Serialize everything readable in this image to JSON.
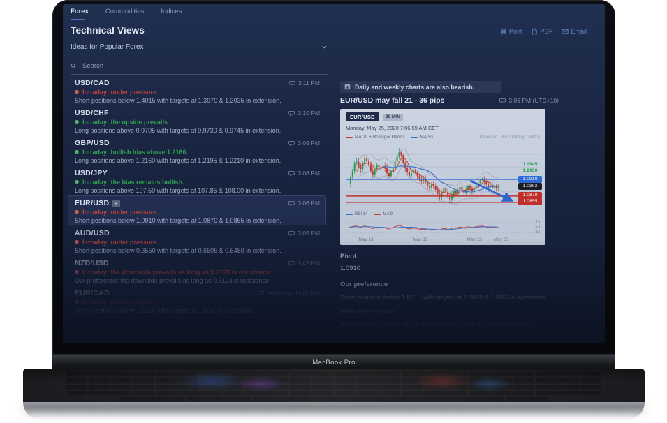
{
  "device": {
    "label": "MacBook Pro"
  },
  "colors": {
    "bullish": "#2f9e4e",
    "bearish": "#c04038",
    "accent_link": "#5f82c4",
    "pivot_blue": "#2e6bd6",
    "support_red": "#bf2e28"
  },
  "app": {
    "tabs": [
      {
        "label": "Forex",
        "active": true
      },
      {
        "label": "Commodities",
        "active": false
      },
      {
        "label": "Indices",
        "active": false
      }
    ],
    "title": "Technical Views",
    "actions": [
      {
        "label": "Print"
      },
      {
        "label": "PDF"
      },
      {
        "label": "Email"
      }
    ],
    "filter": {
      "value": "Ideas for Popular Forex"
    },
    "search": {
      "placeholder": "Search"
    }
  },
  "ideas": [
    {
      "pair": "USD/CAD",
      "sentiment": "bearish",
      "status": "Intraday: under pressure.",
      "body": "Short positions below 1.4015 with targets at 1.3970 & 1.3935 in extension.",
      "time": "3:11 PM"
    },
    {
      "pair": "USD/CHF",
      "sentiment": "bullish",
      "status": "Intraday: the upside prevails.",
      "body": "Long positions above 0.9705 with targets at 0.9730 & 0.9745 in extension.",
      "time": "3:10 PM"
    },
    {
      "pair": "GBP/USD",
      "sentiment": "bullish",
      "status": "Intraday: bullish bias above 1.2160.",
      "body": "Long positions above 1.2160 with targets at 1.2195 & 1.2210 in extension.",
      "time": "3:09 PM"
    },
    {
      "pair": "USD/JPY",
      "sentiment": "bullish",
      "status": "Intraday: the bias remains bullish.",
      "body": "Long positions above 107.50 with targets at 107.85 & 108.00 in extension.",
      "time": "3:08 PM"
    },
    {
      "pair": "EUR/USD",
      "selected": true,
      "sentiment": "bearish",
      "status": "Intraday: under pressure.",
      "body": "Short positions below 1.0910 with targets at 1.0870 & 1.0855 in extension.",
      "time": "3:06 PM"
    },
    {
      "pair": "AUD/USD",
      "sentiment": "bearish",
      "status": "Intraday: under pressure.",
      "body": "Short positions below 0.6550 with targets at 0.6505 & 0.6480 in extension.",
      "time": "3:05 PM"
    },
    {
      "pair": "NZD/USD",
      "sentiment": "bearish",
      "status": "Intraday: the downside prevails as long as 0.6123 is resistance.",
      "body": "Our preference: the downside prevails as long as 0.6123 is resistance.",
      "time": "1:42 PM"
    },
    {
      "pair": "EUR/CAD",
      "sentiment": "bearish",
      "status": "Intraday: under pressure.",
      "body": "Short positions below 1.5310 with targets at 1.5260 in extension.",
      "time": "Yesterday 11:40 PM"
    }
  ],
  "article": {
    "banner": "Daily and weekly charts are also bearish.",
    "title": "EUR/USD may fall 21 - 36 pips",
    "time": "3:06 PM (UTC+10)",
    "pivot_label": "Pivot",
    "pivot_value": "1.0910",
    "preference_label": "Our preference",
    "preference_text": "Short positions below 1.0910 with targets at 1.0870 & 1.0855 in extension.",
    "alternative_label": "Alternative scenario",
    "alternative_text": "Above 1.0910 look for further upside with 1.0945 & 1.0960 as targets."
  },
  "chart_data": {
    "type": "candlestick",
    "symbol": "EUR/USD",
    "interval": "30 MIN",
    "timestamp_line": "Monday, May 25, 2020 7:06:59 AM CET",
    "legend": [
      {
        "label": "MA 20 + Bollinger Bands",
        "color": "#c23b34"
      },
      {
        "label": "MA 50",
        "color": "#3b6fc9"
      }
    ],
    "watermark": "Research | 2020 Trading Central",
    "x_ticks": [
      "May 13",
      "May 15",
      "May 19",
      "May 20"
    ],
    "pivot": 1.091,
    "last": 1.0892,
    "supports": [
      1.087,
      1.0855
    ],
    "resistances": [
      1.0945,
      1.093
    ],
    "price_labels": [
      {
        "value": "1.0945",
        "price": 1.0945,
        "kind": "resistance"
      },
      {
        "value": "1.0930",
        "price": 1.093,
        "kind": "resistance"
      },
      {
        "value": "1.0910",
        "price": 1.091,
        "kind": "pivot"
      },
      {
        "value": "1.0892",
        "price": 1.0892,
        "kind": "last"
      },
      {
        "value": "1.0870",
        "price": 1.087,
        "kind": "support"
      },
      {
        "value": "1.0855",
        "price": 1.0855,
        "kind": "support"
      }
    ],
    "lower_indicator": {
      "legend": [
        {
          "label": "RSI 14",
          "color": "#3b6fc9"
        },
        {
          "label": "MA 9",
          "color": "#c23b34"
        }
      ],
      "ticks": [
        "70",
        "50",
        "30"
      ]
    },
    "closes": [
      1.09,
      1.0915,
      1.093,
      1.0948,
      1.0952,
      1.094,
      1.0935,
      1.095,
      1.0962,
      1.0955,
      1.0945,
      1.093,
      1.0922,
      1.0935,
      1.0945,
      1.094,
      1.0938,
      1.0942,
      1.0936,
      1.0925,
      1.0918,
      1.0928,
      1.094,
      1.0952,
      1.0965,
      1.0975,
      1.0968,
      1.095,
      1.0938,
      1.0928,
      1.0918,
      1.0925,
      1.0932,
      1.0926,
      1.0918,
      1.0912,
      1.0905,
      1.091,
      1.0902,
      1.0895,
      1.089,
      1.0898,
      1.0893,
      1.0885,
      1.0875,
      1.0868,
      1.0878,
      1.0888,
      1.088,
      1.087,
      1.0862,
      1.0872,
      1.0882,
      1.0875,
      1.0885,
      1.0892,
      1.0885,
      1.0878,
      1.0885,
      1.0893,
      1.0888,
      1.0882,
      1.0888,
      1.0895,
      1.0902,
      1.0908,
      1.0912,
      1.0906,
      1.0898,
      1.0892,
      1.0896,
      1.089,
      1.0894,
      1.089,
      1.0892
    ]
  }
}
